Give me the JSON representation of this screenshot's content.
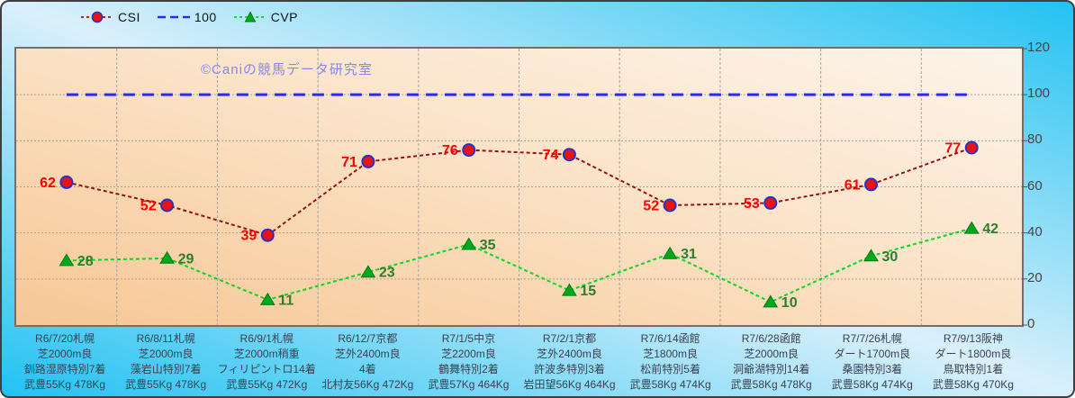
{
  "watermark": "©Caniの競馬データ研究室",
  "chart_data": {
    "type": "line",
    "title": "",
    "ylim": [
      0,
      120
    ],
    "y_ticks": [
      0,
      20,
      40,
      60,
      80,
      100,
      120
    ],
    "grid": true,
    "legend_position": "top",
    "legend_order": [
      "CSI",
      "100",
      "CVP"
    ],
    "categories": [
      [
        "R6/7/20札幌",
        "芝2000m良",
        "釧路湿原特別7着",
        "武豊55Kg 478Kg"
      ],
      [
        "R6/8/11札幌",
        "芝2000m良",
        "藻岩山特別7着",
        "武豊55Kg 478Kg"
      ],
      [
        "R6/9/1札幌",
        "芝2000m稍重",
        "フィリピントロ14着",
        "武豊55Kg 472Kg"
      ],
      [
        "R6/12/7京都",
        "芝外2400m良",
        "4着",
        "北村友56Kg 472Kg"
      ],
      [
        "R7/1/5中京",
        "芝2200m良",
        "鶴舞特別2着",
        "武豊57Kg 464Kg"
      ],
      [
        "R7/2/1京都",
        "芝外2400m良",
        "許波多特別3着",
        "岩田望56Kg 464Kg"
      ],
      [
        "R7/6/14函館",
        "芝1800m良",
        "松前特別5着",
        "武豊58Kg 474Kg"
      ],
      [
        "R7/6/28函館",
        "芝2000m良",
        "洞爺湖特別14着",
        "武豊58Kg 478Kg"
      ],
      [
        "R7/7/26札幌",
        "ダート1700m良",
        "桑園特別3着",
        "武豊58Kg 474Kg"
      ],
      [
        "R7/9/13阪神",
        "ダート1800m良",
        "鳥取特別1着",
        "武豊58Kg 470Kg"
      ]
    ],
    "series": [
      {
        "name": "CSI",
        "values": [
          62,
          52,
          39,
          71,
          76,
          74,
          52,
          53,
          61,
          77
        ],
        "marker": "circle",
        "line_color": "#991111",
        "marker_fill": "#ee1111",
        "marker_stroke": "#2233cc",
        "label_color": "#ff0000",
        "label_side": "left"
      },
      {
        "name": "CVP",
        "values": [
          28,
          29,
          11,
          23,
          35,
          15,
          31,
          10,
          30,
          42
        ],
        "marker": "triangle",
        "line_color": "#00d91e",
        "marker_fill": "#00a81e",
        "marker_stroke": "#007a12",
        "label_color": "#2e7d2e",
        "label_side": "right"
      }
    ],
    "reference_line": {
      "name": "100",
      "value": 100,
      "color": "#2a2af0"
    }
  }
}
